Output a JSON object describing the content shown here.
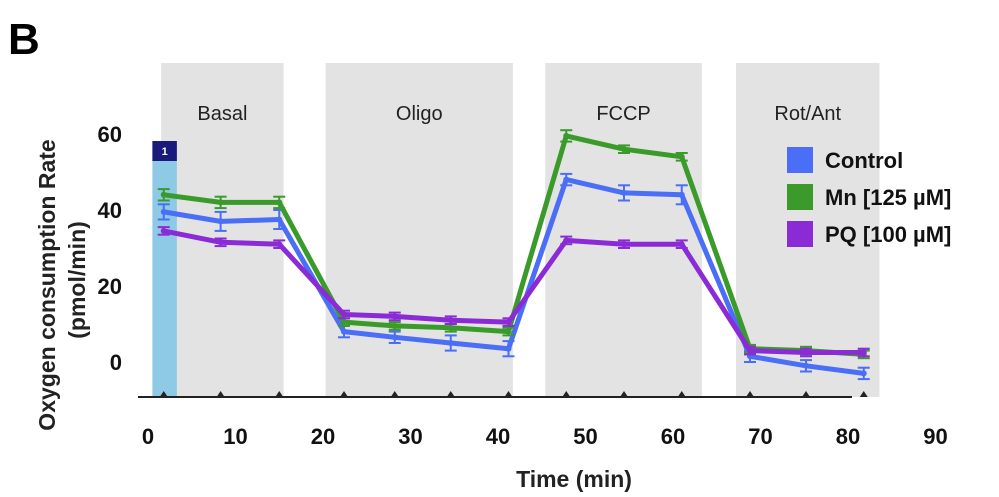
{
  "panel_label": "B",
  "chart_data": {
    "type": "line",
    "xlabel": "Time (min)",
    "ylabel_line1": "Oxygen consumption Rate",
    "ylabel_line2": "(pmol/min)",
    "xlim": [
      0,
      95
    ],
    "ylim": [
      -10,
      65
    ],
    "x_ticks": [
      0,
      10,
      20,
      30,
      40,
      50,
      60,
      70,
      80,
      90
    ],
    "x_tick_labels": [
      "0",
      "10",
      "20",
      "30",
      "40",
      "50",
      "60",
      "70",
      "80",
      "90"
    ],
    "y_ticks": [
      0,
      20,
      40,
      60
    ],
    "y_tick_labels": [
      "0",
      "20",
      "40",
      "60"
    ],
    "phases": [
      {
        "label": "Basal",
        "x_start": 1.5,
        "x_end": 15.5
      },
      {
        "label": "Oligo",
        "x_start": 20.3,
        "x_end": 41.7
      },
      {
        "label": "FCCP",
        "x_start": 45.4,
        "x_end": 63.3
      },
      {
        "label": "Rot/Ant",
        "x_start": 67.2,
        "x_end": 83.6
      }
    ],
    "injection_marker": {
      "label": "1",
      "x_start": 0.5,
      "x_end": 3.3,
      "color": "#8ecae6"
    },
    "measurement_times": [
      1.8,
      8.3,
      15.0,
      22.4,
      28.2,
      34.6,
      41.2,
      47.8,
      54.4,
      61.0,
      68.8,
      75.2,
      81.8
    ],
    "x": [
      1.8,
      8.3,
      15.0,
      22.4,
      28.2,
      34.6,
      41.2,
      47.8,
      54.4,
      61.0,
      68.8,
      75.2,
      81.8
    ],
    "series": [
      {
        "name": "Control",
        "color": "#4a6ef5",
        "values": [
          39.5,
          37,
          37.5,
          8,
          6.5,
          5,
          3.5,
          48,
          44.5,
          44,
          1.5,
          -1,
          -3
        ],
        "errors": [
          2,
          2.5,
          2.5,
          1.5,
          1.5,
          2,
          2,
          1.5,
          2,
          2.5,
          1.5,
          1.5,
          1.5
        ]
      },
      {
        "name": "Mn [125 µM]",
        "color": "#3a9a2a",
        "values": [
          44,
          42,
          42,
          10.5,
          9.5,
          9,
          8,
          59.5,
          56,
          54,
          3.5,
          3,
          2
        ],
        "errors": [
          1.5,
          1.5,
          1.5,
          1,
          1,
          1,
          1,
          1.5,
          1,
          1,
          1,
          1,
          1
        ]
      },
      {
        "name": "PQ [100 µM]",
        "color": "#8a2bd6",
        "values": [
          34.5,
          31.5,
          31,
          12.5,
          12,
          11,
          10.5,
          32,
          31,
          31,
          3,
          2.5,
          2.5
        ],
        "errors": [
          1,
          1,
          1,
          1,
          1,
          1,
          1,
          1,
          1,
          1,
          1,
          1,
          1
        ]
      }
    ],
    "legend_position": "top-right",
    "grid": false
  }
}
